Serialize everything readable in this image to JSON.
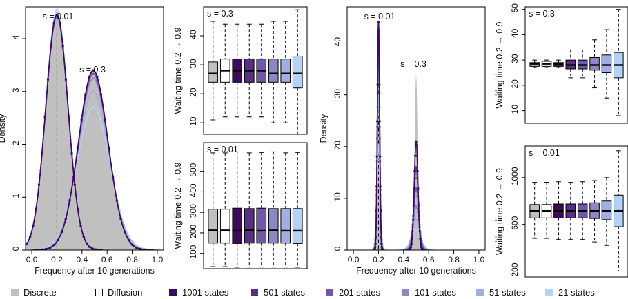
{
  "colors": {
    "discrete": "#c0c0c0",
    "diffusion": "#ffffff",
    "s1001": "#3d0a5c",
    "s501": "#5b2e86",
    "s201": "#7158a6",
    "s101": "#8f86c4",
    "s51": "#a3aee0",
    "s21": "#b4d2f6"
  },
  "legend": [
    {
      "label": "Discrete",
      "color_key": "discrete"
    },
    {
      "label": "Diffusion",
      "color_key": "diffusion"
    },
    {
      "label": "1001  states",
      "color_key": "s1001"
    },
    {
      "label": "501  states",
      "color_key": "s501"
    },
    {
      "label": "201  states",
      "color_key": "s201"
    },
    {
      "label": "101  states",
      "color_key": "s101"
    },
    {
      "label": "51  states",
      "color_key": "s51"
    },
    {
      "label": "21  states",
      "color_key": "s21"
    }
  ],
  "chart_data": [
    {
      "id": "density_left",
      "type": "line",
      "xlabel": "Frequency after 10 generations",
      "ylabel": "Density",
      "xlim": [
        -0.05,
        1.05
      ],
      "ylim": [
        0,
        4.6
      ],
      "xticks": [
        "0.0",
        "0.2",
        "0.4",
        "0.6",
        "0.8",
        "1.0"
      ],
      "xtick_values": [
        0,
        0.2,
        0.4,
        0.6,
        0.8,
        1.0
      ],
      "yticks": [
        "0",
        "1",
        "2",
        "3",
        "4"
      ],
      "ytick_values": [
        0,
        1,
        2,
        3,
        4
      ],
      "annotations": [
        "s = 0.01",
        "s = 0.3"
      ],
      "vline_x": 0.2,
      "components": [
        {
          "label": "s = 0.01",
          "center": 0.2,
          "sd": 0.089,
          "peak": 4.45
        },
        {
          "label": "s = 0.3",
          "center": 0.49,
          "sd": 0.117,
          "peak": 3.4
        }
      ],
      "series": [
        {
          "name": "Discrete",
          "fill": true,
          "peaks": [
            4.45,
            3.4
          ]
        },
        {
          "name": "1001 states",
          "peaks": [
            4.45,
            3.4
          ]
        },
        {
          "name": "501 states",
          "peaks": [
            4.45,
            3.38
          ]
        },
        {
          "name": "201 states",
          "peaks": [
            4.43,
            3.33
          ]
        },
        {
          "name": "101 states",
          "peaks": [
            4.4,
            3.25
          ]
        },
        {
          "name": "51 states",
          "peaks": [
            4.48,
            3.0
          ]
        },
        {
          "name": "21 states",
          "peaks": [
            4.55,
            2.7
          ]
        }
      ]
    },
    {
      "id": "box_left_s03",
      "type": "box",
      "ylabel": "Waiting time 0.2 → 0.9",
      "annotation": "s = 0.3",
      "ylim": [
        6,
        50
      ],
      "yticks": [
        "10",
        "20",
        "30",
        "40"
      ],
      "ytick_values": [
        10,
        20,
        30,
        40
      ],
      "boxes": [
        {
          "name": "Discrete",
          "min": 11,
          "q1": 24,
          "median": 27,
          "q3": 31,
          "max": 45
        },
        {
          "name": "Diffusion",
          "min": 12,
          "q1": 24,
          "median": 28,
          "q3": 32,
          "max": 44
        },
        {
          "name": "1001 states",
          "min": 12,
          "q1": 24,
          "median": 28,
          "q3": 32,
          "max": 44
        },
        {
          "name": "501 states",
          "min": 12,
          "q1": 24,
          "median": 28,
          "q3": 32,
          "max": 44
        },
        {
          "name": "201 states",
          "min": 12,
          "q1": 24,
          "median": 28,
          "q3": 32,
          "max": 44
        },
        {
          "name": "101 states",
          "min": 10,
          "q1": 24,
          "median": 27,
          "q3": 32,
          "max": 45
        },
        {
          "name": "51 states",
          "min": 10,
          "q1": 24,
          "median": 27,
          "q3": 32,
          "max": 45
        },
        {
          "name": "21 states",
          "min": 6,
          "q1": 22,
          "median": 27,
          "q3": 33,
          "max": 49
        }
      ]
    },
    {
      "id": "box_left_s001",
      "type": "box",
      "ylabel": "Waiting time 0.2 → 0.9",
      "annotation": "s = 0.01",
      "ylim": [
        25,
        640
      ],
      "yticks": [
        "100",
        "200",
        "300",
        "400",
        "500"
      ],
      "ytick_values": [
        100,
        200,
        300,
        400,
        500
      ],
      "boxes": [
        {
          "name": "Discrete",
          "min": 35,
          "q1": 150,
          "median": 212,
          "q3": 315,
          "max": 590
        },
        {
          "name": "Diffusion",
          "min": 35,
          "q1": 150,
          "median": 212,
          "q3": 315,
          "max": 590
        },
        {
          "name": "1001 states",
          "min": 32,
          "q1": 148,
          "median": 210,
          "q3": 320,
          "max": 595
        },
        {
          "name": "501 states",
          "min": 33,
          "q1": 150,
          "median": 212,
          "q3": 318,
          "max": 590
        },
        {
          "name": "201 states",
          "min": 33,
          "q1": 150,
          "median": 210,
          "q3": 320,
          "max": 592
        },
        {
          "name": "101 states",
          "min": 33,
          "q1": 150,
          "median": 212,
          "q3": 318,
          "max": 595
        },
        {
          "name": "51 states",
          "min": 33,
          "q1": 150,
          "median": 210,
          "q3": 318,
          "max": 590
        },
        {
          "name": "21 states",
          "min": 32,
          "q1": 148,
          "median": 210,
          "q3": 318,
          "max": 592
        }
      ]
    },
    {
      "id": "density_right",
      "type": "line",
      "xlabel": "Frequency after 10 generations",
      "ylabel": "Density",
      "xlim": [
        -0.05,
        1.05
      ],
      "ylim": [
        0,
        47
      ],
      "xticks": [
        "0.0",
        "0.2",
        "0.4",
        "0.6",
        "0.8",
        "1.0"
      ],
      "xtick_values": [
        0,
        0.2,
        0.4,
        0.6,
        0.8,
        1.0
      ],
      "yticks": [
        "0",
        "10",
        "20",
        "30",
        "40"
      ],
      "ytick_values": [
        0,
        10,
        20,
        30,
        40
      ],
      "annotations": [
        "s = 0.01",
        "s = 0.3"
      ],
      "vline_x": 0.2,
      "components": [
        {
          "label": "s = 0.01",
          "center": 0.2,
          "sd": 0.009
        },
        {
          "label": "s = 0.3",
          "center": 0.5,
          "sd": 0.012
        }
      ],
      "series": [
        {
          "name": "Discrete",
          "fill": true,
          "peaks": [
            44,
            34
          ]
        },
        {
          "name": "1001 states",
          "peaks": [
            44,
            21
          ]
        },
        {
          "name": "501 states",
          "peaks": [
            44,
            16
          ]
        },
        {
          "name": "201 states",
          "peaks": [
            42,
            12
          ]
        },
        {
          "name": "101 states",
          "peaks": [
            38,
            8.5
          ]
        },
        {
          "name": "51 states",
          "peaks": [
            30,
            6
          ]
        },
        {
          "name": "21 states",
          "peaks": [
            20,
            4
          ]
        }
      ]
    },
    {
      "id": "box_right_s03",
      "type": "box",
      "ylabel": "Waiting time 0.2 → 0.9",
      "annotation": "s = 0.3",
      "ylim": [
        5,
        51
      ],
      "yticks": [
        "10",
        "20",
        "30",
        "40",
        "50"
      ],
      "ytick_values": [
        10,
        20,
        30,
        40,
        50
      ],
      "boxes": [
        {
          "name": "Discrete",
          "min": 27,
          "q1": 27.5,
          "median": 28.5,
          "q3": 29,
          "max": 30
        },
        {
          "name": "Diffusion",
          "min": 27,
          "q1": 27.5,
          "median": 28.5,
          "q3": 29.5,
          "max": 30
        },
        {
          "name": "1001 states",
          "min": 27,
          "q1": 27.5,
          "median": 28.5,
          "q3": 29,
          "max": 30
        },
        {
          "name": "501 states",
          "min": 23,
          "q1": 26.5,
          "median": 28,
          "q3": 30,
          "max": 34
        },
        {
          "name": "201 states",
          "min": 23,
          "q1": 26.5,
          "median": 28,
          "q3": 30,
          "max": 34
        },
        {
          "name": "101 states",
          "min": 19,
          "q1": 26,
          "median": 28,
          "q3": 31,
          "max": 38
        },
        {
          "name": "51 states",
          "min": 15,
          "q1": 25,
          "median": 28,
          "q3": 32,
          "max": 42
        },
        {
          "name": "21 states",
          "min": 8,
          "q1": 23,
          "median": 28,
          "q3": 33,
          "max": 50
        }
      ]
    },
    {
      "id": "box_right_s001",
      "type": "box",
      "ylabel": "Waiting time 0.2 → 0.9",
      "annotation": "s = 0.01",
      "ylim": [
        150,
        1270
      ],
      "yticks": [
        "200",
        "600",
        "1000"
      ],
      "ytick_values": [
        200,
        600,
        1000
      ],
      "boxes": [
        {
          "name": "Discrete",
          "min": 480,
          "q1": 655,
          "median": 715,
          "q3": 770,
          "max": 960
        },
        {
          "name": "Diffusion",
          "min": 480,
          "q1": 655,
          "median": 715,
          "q3": 770,
          "max": 960
        },
        {
          "name": "1001 states",
          "min": 470,
          "q1": 655,
          "median": 715,
          "q3": 775,
          "max": 965
        },
        {
          "name": "501 states",
          "min": 470,
          "q1": 655,
          "median": 715,
          "q3": 775,
          "max": 960
        },
        {
          "name": "201 states",
          "min": 470,
          "q1": 655,
          "median": 715,
          "q3": 775,
          "max": 965
        },
        {
          "name": "101 states",
          "min": 450,
          "q1": 650,
          "median": 715,
          "q3": 785,
          "max": 975
        },
        {
          "name": "51 states",
          "min": 420,
          "q1": 640,
          "median": 715,
          "q3": 800,
          "max": 1000
        },
        {
          "name": "21 states",
          "min": 200,
          "q1": 580,
          "median": 715,
          "q3": 850,
          "max": 1230
        }
      ]
    }
  ]
}
